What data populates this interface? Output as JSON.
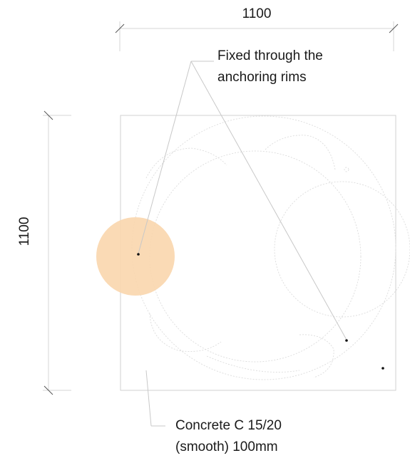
{
  "dimensions": {
    "width_label": "1100",
    "height_label": "1100"
  },
  "annotations": {
    "anchor_note": [
      "Fixed through the",
      "anchoring rims"
    ],
    "material_note": [
      "Concrete C 15/20",
      "(smooth) 100mm"
    ]
  },
  "colors": {
    "highlight": "#fad6ad",
    "frame": "#d0d0d0",
    "dashed_lines": "#dcdcdc",
    "text": "#1a1a1a"
  }
}
